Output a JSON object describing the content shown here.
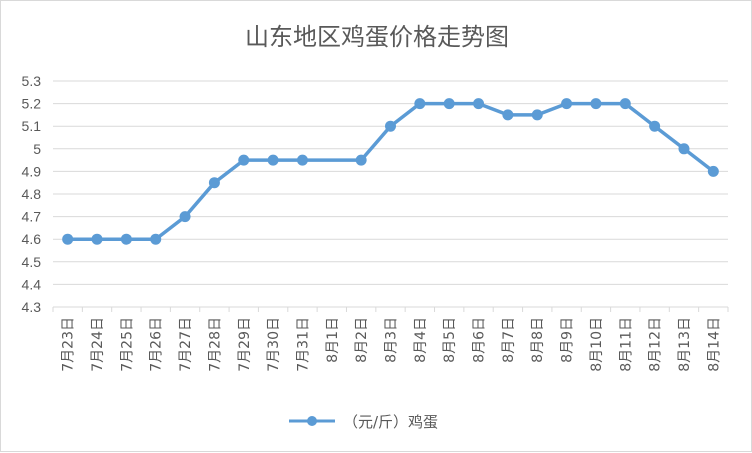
{
  "chart_data": {
    "type": "line",
    "title": "山东地区鸡蛋价格走势图",
    "xlabel": "",
    "ylabel": "",
    "categories": [
      "7月23日",
      "7月24日",
      "7月25日",
      "7月26日",
      "7月27日",
      "7月28日",
      "7月29日",
      "7月30日",
      "7月31日",
      "8月1日",
      "8月2日",
      "8月3日",
      "8月4日",
      "8月5日",
      "8月6日",
      "8月7日",
      "8月8日",
      "8月9日",
      "8月10日",
      "8月11日",
      "8月12日",
      "8月13日",
      "8月14日"
    ],
    "series": [
      {
        "name": "（元/斤）鸡蛋",
        "values": [
          4.6,
          4.6,
          4.6,
          4.6,
          4.7,
          4.85,
          4.95,
          4.95,
          4.95,
          null,
          4.95,
          5.1,
          5.2,
          5.2,
          5.2,
          5.15,
          5.15,
          5.2,
          5.2,
          5.2,
          5.1,
          5.0,
          4.9
        ]
      }
    ],
    "ylim": [
      4.3,
      5.3
    ],
    "yticks": [
      "5.3",
      "5.2",
      "5.1",
      "5",
      "4.9",
      "4.8",
      "4.7",
      "4.6",
      "4.5",
      "4.4",
      "4.3"
    ],
    "grid": true,
    "legend": "bottom-center",
    "colors": {
      "series": "#5b9bd5",
      "grid": "#d9d9d9",
      "text": "#595959"
    }
  }
}
